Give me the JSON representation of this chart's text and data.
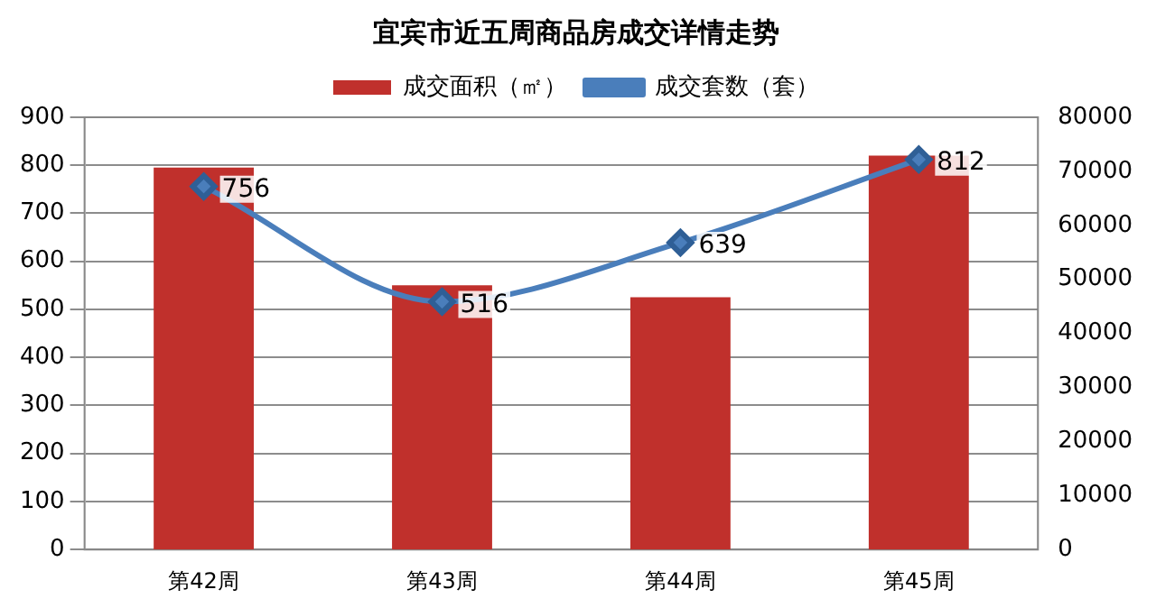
{
  "chart_data": {
    "type": "bar",
    "title": "宜宾市近五周商品房成交详情走势",
    "categories": [
      "第42周",
      "第43周",
      "第44周",
      "第45周"
    ],
    "series": [
      {
        "name": "成交面积（㎡）",
        "axis": "y2",
        "color": "#c0302c",
        "values": [
          70700,
          48900,
          46700,
          72900
        ]
      },
      {
        "name": "成交套数（套）",
        "type": "line",
        "axis": "y",
        "color": "#4a7ebb",
        "values": [
          756,
          516,
          639,
          812
        ],
        "value_labels": [
          "756",
          "516",
          "639",
          "812"
        ]
      }
    ],
    "ylim": [
      0,
      900
    ],
    "yticks": [
      0,
      100,
      200,
      300,
      400,
      500,
      600,
      700,
      800,
      900
    ],
    "y2lim": [
      0,
      80000
    ],
    "y2ticks": [
      0,
      10000,
      20000,
      30000,
      40000,
      50000,
      60000,
      70000,
      80000
    ],
    "grid": "y",
    "legend": "top",
    "marker": "diamond",
    "line_style": "solid"
  }
}
